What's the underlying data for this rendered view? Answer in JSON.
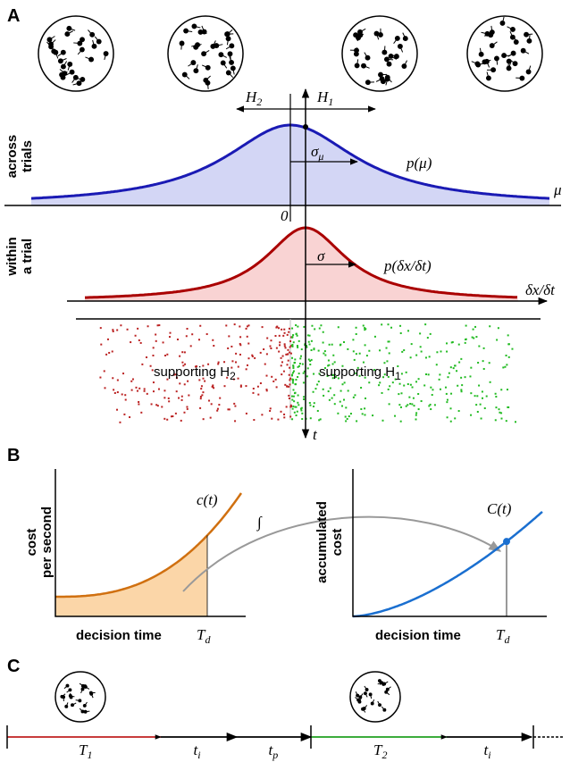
{
  "panel_a": {
    "label": "A",
    "h2": {
      "text": "H",
      "sub": "2"
    },
    "h1": {
      "text": "H",
      "sub": "1"
    },
    "across_label": [
      "across",
      "trials"
    ],
    "sigma_mu": {
      "text": "σ",
      "sub": "μ"
    },
    "p_mu": "p(μ)",
    "mu": "μ",
    "zero": "0",
    "within_label": [
      "within",
      "a trial"
    ],
    "sigma": "σ",
    "p_dx": "p(δx/δt)",
    "dx_axis": "δx/δt",
    "supporting_h2": {
      "text": "supporting H",
      "sub": "2"
    },
    "supporting_h1": {
      "text": "supporting H",
      "sub": "1"
    },
    "t": "t"
  },
  "panel_b": {
    "label": "B",
    "cost_label": [
      "cost",
      "per second"
    ],
    "c_t": "c(t)",
    "integral": "∫",
    "x_label_left": "decision time",
    "td_left": {
      "text": "T",
      "sub": "d"
    },
    "accum_label": [
      "accumulated",
      "cost"
    ],
    "C_t": "C(t)",
    "x_label_right": "decision time",
    "td_right": {
      "text": "T",
      "sub": "d"
    }
  },
  "panel_c": {
    "label": "C",
    "segments": [
      {
        "text": "T",
        "sub": "1"
      },
      {
        "text": "t",
        "sub": "i"
      },
      {
        "text": "t",
        "sub": "p"
      },
      {
        "text": "T",
        "sub": "2"
      },
      {
        "text": "t",
        "sub": "i"
      }
    ]
  }
}
